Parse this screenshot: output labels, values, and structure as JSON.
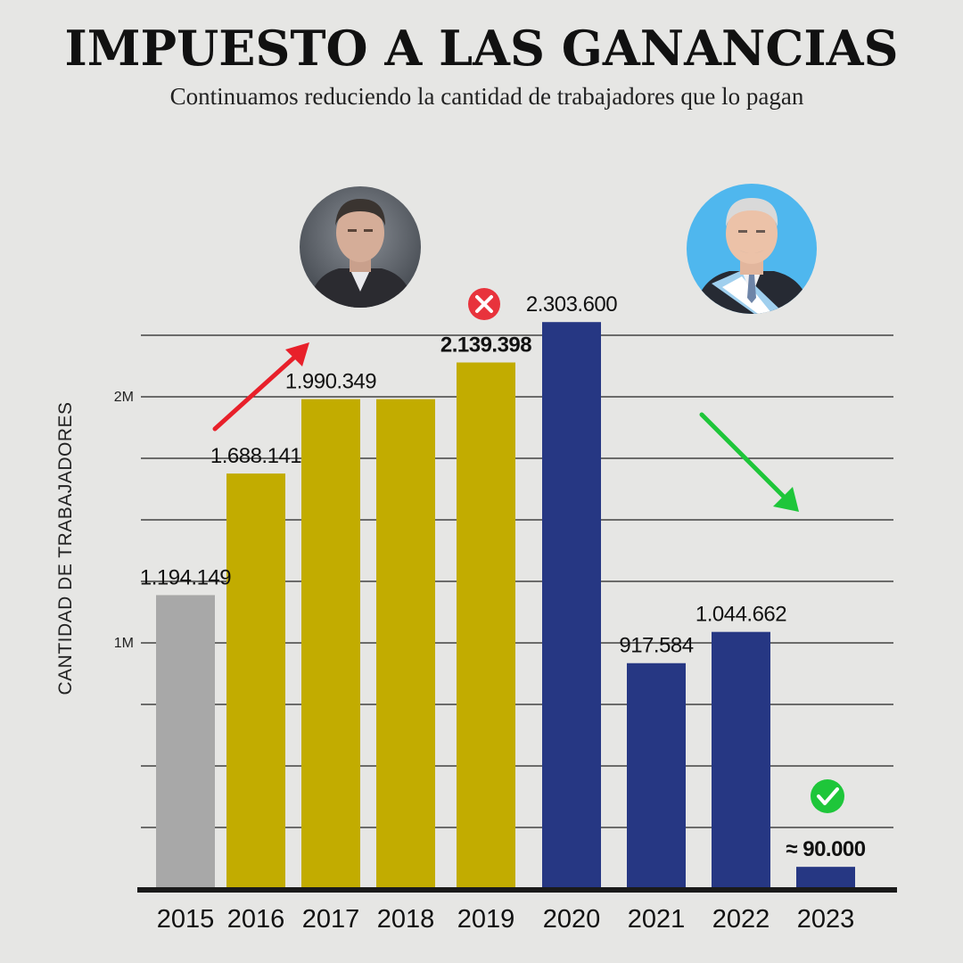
{
  "chart_data": {
    "type": "bar",
    "title": "IMPUESTO A LAS GANANCIAS",
    "subtitle": "Continuamos reduciendo la cantidad de trabajadores que lo pagan",
    "ylabel": "CANTIDAD DE TRABAJADORES",
    "xlabel": "",
    "categories": [
      "2015",
      "2016",
      "2017",
      "2018",
      "2019",
      "2020",
      "2021",
      "2022",
      "2023"
    ],
    "values": [
      1194149,
      1688141,
      1990349,
      1990349,
      2139398,
      2303600,
      917584,
      1044662,
      90000
    ],
    "value_labels": [
      "1.194.149",
      "1.688.141",
      "1.990.349",
      "",
      "2.139.398",
      "2.303.600",
      "917.584",
      "1.044.662",
      "≈ 90.000"
    ],
    "bar_colors": [
      "#a8a8a8",
      "#c2ac00",
      "#c2ac00",
      "#c2ac00",
      "#c2ac00",
      "#263783",
      "#263783",
      "#263783",
      "#263783"
    ],
    "ytick_labels": [
      "2M",
      "1M"
    ],
    "ylim": [
      0,
      2600000
    ],
    "grid": true,
    "annotations": {
      "red_arrow_color": "#e8202a",
      "green_arrow_color": "#1ec63a",
      "x_mark_color": "#e8333c",
      "check_mark_color": "#1ec63a"
    }
  }
}
